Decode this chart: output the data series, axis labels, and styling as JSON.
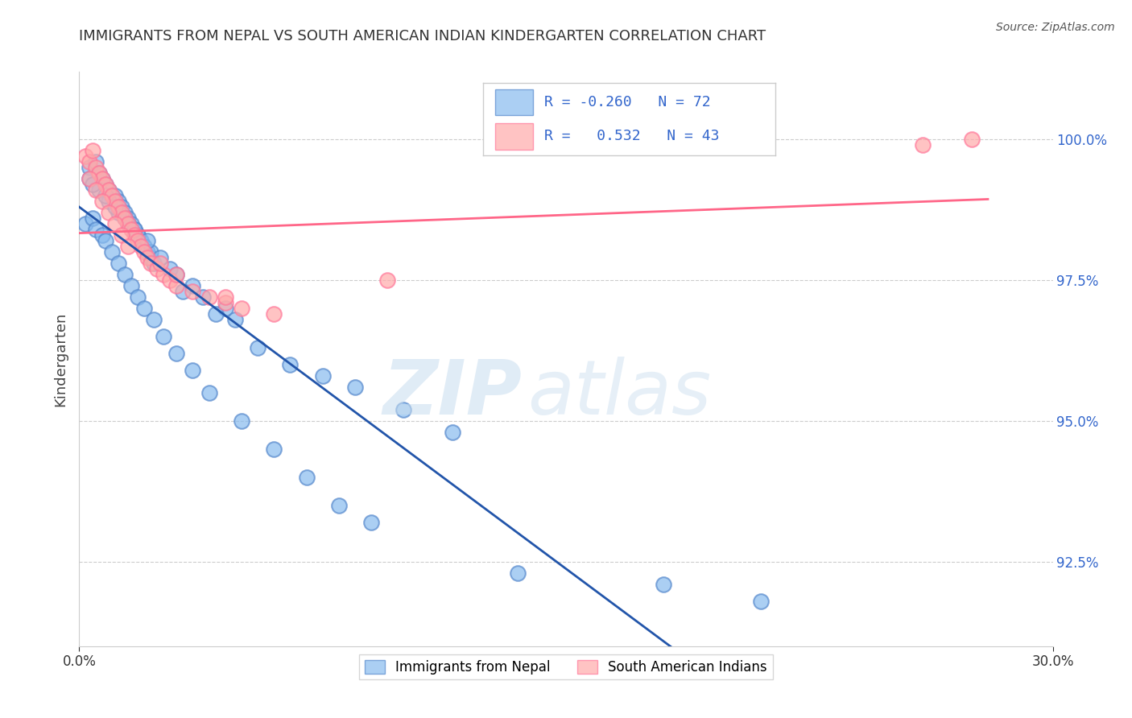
{
  "title": "IMMIGRANTS FROM NEPAL VS SOUTH AMERICAN INDIAN KINDERGARTEN CORRELATION CHART",
  "source": "Source: ZipAtlas.com",
  "ylabel": "Kindergarten",
  "x_min": 0.0,
  "x_max": 30.0,
  "y_min": 91.0,
  "y_max": 101.2,
  "y_ticks": [
    92.5,
    95.0,
    97.5,
    100.0
  ],
  "blue_color": "#88BBEE",
  "pink_color": "#FFAAAA",
  "blue_edge": "#5588CC",
  "pink_edge": "#FF7799",
  "blue_line_color": "#2255AA",
  "pink_line_color": "#FF6688",
  "gray_dash_color": "#AAAAAA",
  "watermark_zip": "ZIP",
  "watermark_atlas": "atlas",
  "legend_R1": "-0.260",
  "legend_N1": "72",
  "legend_R2": " 0.532",
  "legend_N2": "43",
  "nepal_x": [
    0.3,
    0.5,
    0.6,
    0.7,
    0.8,
    0.9,
    1.0,
    1.1,
    1.2,
    1.3,
    1.4,
    1.5,
    1.6,
    1.7,
    1.8,
    1.9,
    2.0,
    2.1,
    2.2,
    2.3,
    0.2,
    0.4,
    0.5,
    0.7,
    0.8,
    1.0,
    1.2,
    1.4,
    1.6,
    1.8,
    2.0,
    2.3,
    2.6,
    3.0,
    3.5,
    4.0,
    5.0,
    6.0,
    7.0,
    8.0,
    0.3,
    0.6,
    0.9,
    1.2,
    1.5,
    1.8,
    2.2,
    2.8,
    3.5,
    4.5,
    6.5,
    8.5,
    10.0,
    11.5,
    3.2,
    4.8,
    0.4,
    0.8,
    1.1,
    1.4,
    1.7,
    2.1,
    2.5,
    3.0,
    3.8,
    4.2,
    5.5,
    7.5,
    9.0,
    13.5,
    18.0,
    21.0
  ],
  "nepal_y": [
    99.5,
    99.6,
    99.4,
    99.3,
    99.2,
    99.1,
    99.0,
    99.0,
    98.9,
    98.8,
    98.7,
    98.6,
    98.5,
    98.4,
    98.3,
    98.2,
    98.1,
    98.0,
    97.9,
    97.8,
    98.5,
    98.6,
    98.4,
    98.3,
    98.2,
    98.0,
    97.8,
    97.6,
    97.4,
    97.2,
    97.0,
    96.8,
    96.5,
    96.2,
    95.9,
    95.5,
    95.0,
    94.5,
    94.0,
    93.5,
    99.3,
    99.1,
    98.9,
    98.7,
    98.5,
    98.3,
    98.0,
    97.7,
    97.4,
    97.0,
    96.0,
    95.6,
    95.2,
    94.8,
    97.3,
    96.8,
    99.2,
    99.0,
    98.8,
    98.6,
    98.4,
    98.2,
    97.9,
    97.6,
    97.2,
    96.9,
    96.3,
    95.8,
    93.2,
    92.3,
    92.1,
    91.8
  ],
  "sai_x": [
    0.2,
    0.3,
    0.4,
    0.5,
    0.6,
    0.7,
    0.8,
    0.9,
    1.0,
    1.1,
    1.2,
    1.3,
    1.4,
    1.5,
    1.6,
    1.7,
    1.8,
    1.9,
    2.0,
    2.1,
    2.2,
    2.4,
    2.6,
    2.8,
    3.0,
    3.5,
    4.0,
    4.5,
    5.0,
    6.0,
    0.3,
    0.5,
    0.7,
    0.9,
    1.1,
    1.3,
    1.5,
    2.5,
    3.0,
    4.5,
    9.5,
    26.0,
    27.5
  ],
  "sai_y": [
    99.7,
    99.6,
    99.8,
    99.5,
    99.4,
    99.3,
    99.2,
    99.1,
    99.0,
    98.9,
    98.8,
    98.7,
    98.6,
    98.5,
    98.4,
    98.3,
    98.2,
    98.1,
    98.0,
    97.9,
    97.8,
    97.7,
    97.6,
    97.5,
    97.4,
    97.3,
    97.2,
    97.1,
    97.0,
    96.9,
    99.3,
    99.1,
    98.9,
    98.7,
    98.5,
    98.3,
    98.1,
    97.8,
    97.6,
    97.2,
    97.5,
    99.9,
    100.0
  ]
}
